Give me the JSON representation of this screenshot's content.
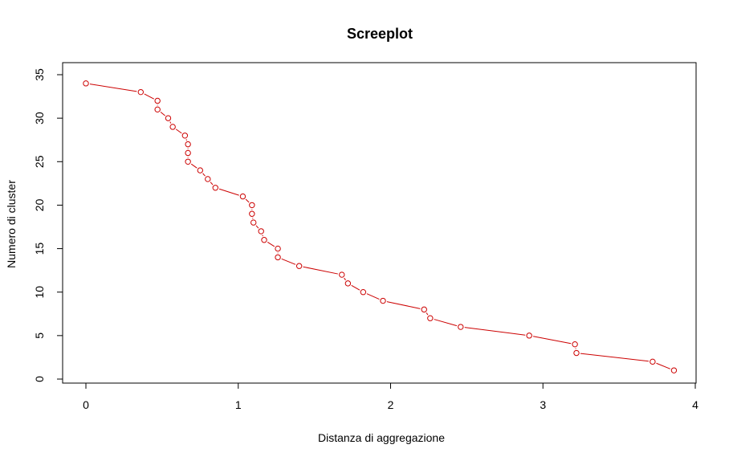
{
  "chart_data": {
    "type": "line",
    "title": "Screeplot",
    "xlabel": "Distanza di aggregazione",
    "ylabel": "Numero di cluster",
    "xlim": [
      0,
      4
    ],
    "ylim": [
      0,
      35
    ],
    "x_ticks": [
      0,
      1,
      2,
      3,
      4
    ],
    "y_ticks": [
      0,
      5,
      10,
      15,
      20,
      25,
      30,
      35
    ],
    "grid": false,
    "legend": "none",
    "series": [
      {
        "color": "#cc0000",
        "marker": "open-circle",
        "x": [
          0.0,
          0.36,
          0.47,
          0.47,
          0.54,
          0.57,
          0.65,
          0.67,
          0.67,
          0.67,
          0.75,
          0.8,
          0.85,
          1.03,
          1.09,
          1.09,
          1.1,
          1.15,
          1.17,
          1.26,
          1.26,
          1.4,
          1.68,
          1.72,
          1.82,
          1.95,
          2.22,
          2.26,
          2.46,
          2.91,
          3.21,
          3.22,
          3.72,
          3.86
        ],
        "y": [
          34,
          33,
          32,
          31,
          30,
          29,
          28,
          27,
          26,
          25,
          24,
          23,
          22,
          21,
          20,
          19,
          18,
          17,
          16,
          15,
          14,
          13,
          12,
          11,
          10,
          9,
          8,
          7,
          6,
          5,
          4,
          3,
          2,
          1
        ]
      }
    ]
  }
}
